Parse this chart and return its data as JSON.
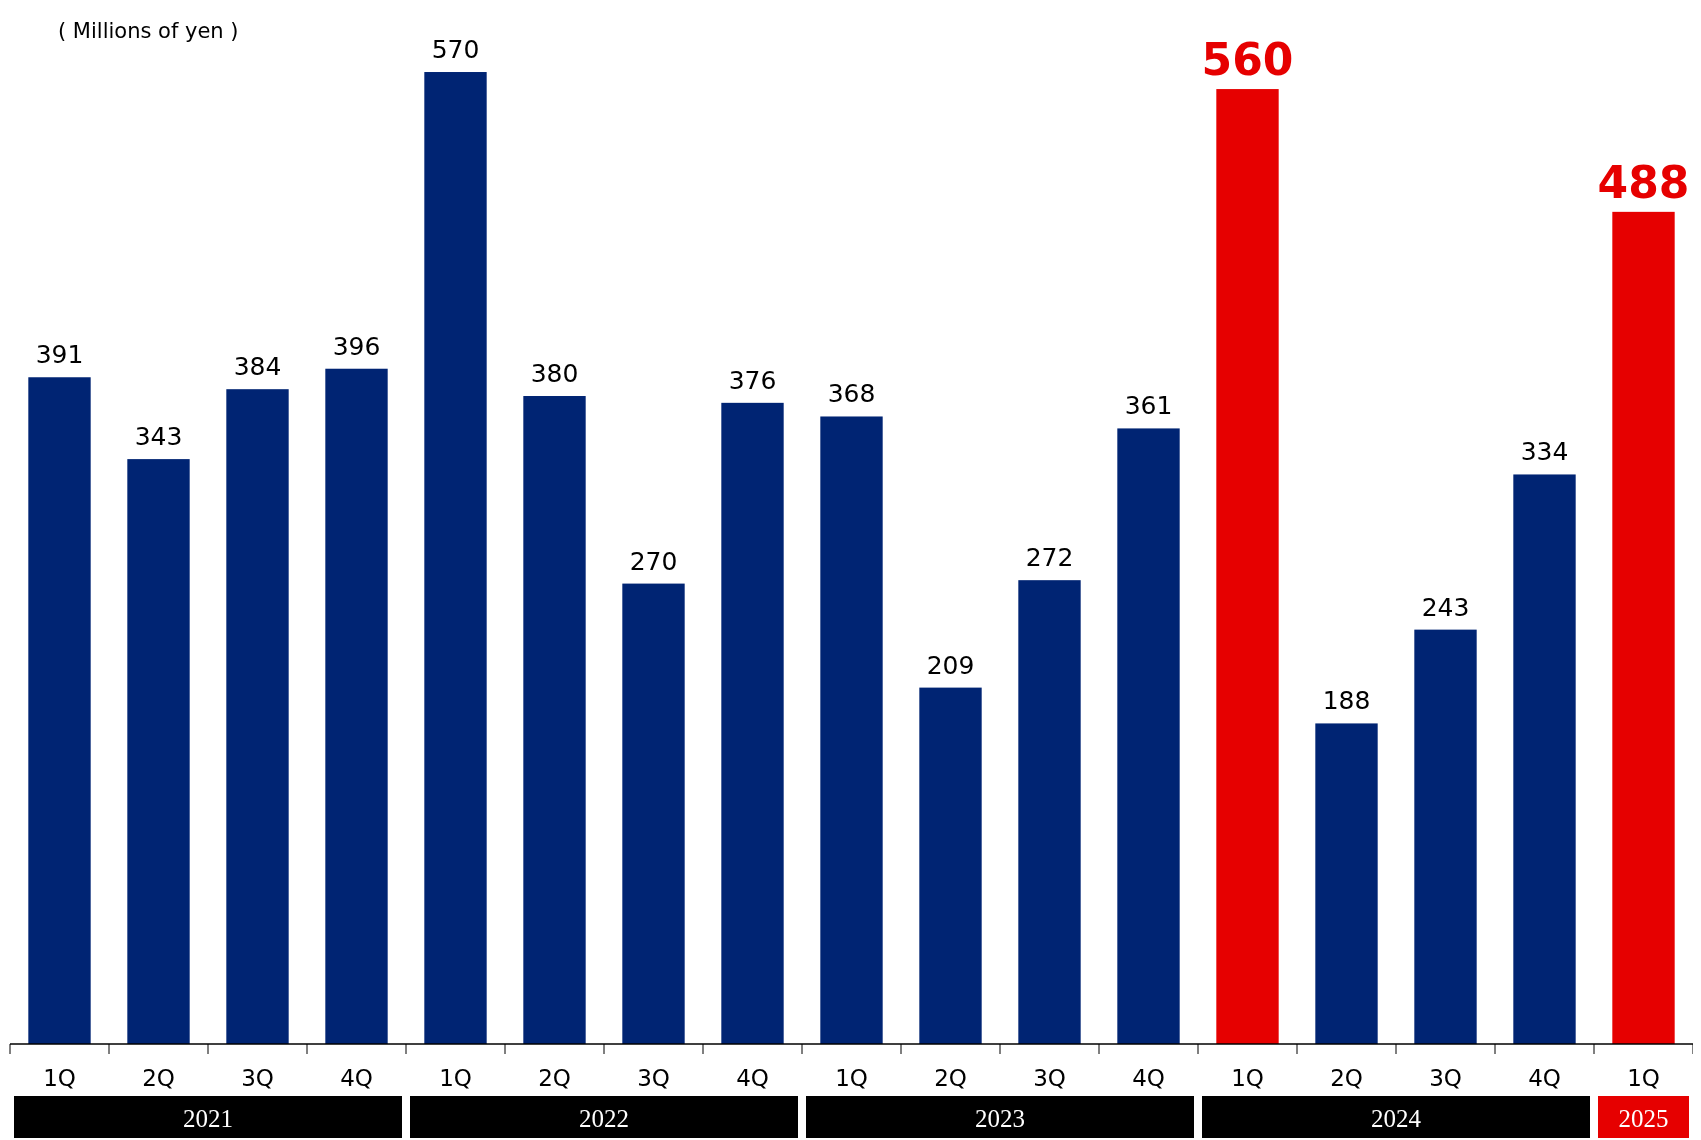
{
  "chart_data": {
    "type": "bar",
    "ylabel": "( Millions of yen )",
    "categories": [
      "1Q",
      "2Q",
      "3Q",
      "4Q",
      "1Q",
      "2Q",
      "3Q",
      "4Q",
      "1Q",
      "2Q",
      "3Q",
      "4Q",
      "1Q",
      "2Q",
      "3Q",
      "4Q",
      "1Q"
    ],
    "values": [
      391,
      343,
      384,
      396,
      570,
      380,
      270,
      376,
      368,
      209,
      272,
      361,
      560,
      188,
      243,
      334,
      488
    ],
    "colors": [
      "#002473",
      "#002473",
      "#002473",
      "#002473",
      "#002473",
      "#002473",
      "#002473",
      "#002473",
      "#002473",
      "#002473",
      "#002473",
      "#002473",
      "#e60000",
      "#002473",
      "#002473",
      "#002473",
      "#e60000"
    ],
    "data_labels": true,
    "tick_labels": "x",
    "annotations": [
      "2021",
      "2022",
      "2023",
      "2024",
      "2025"
    ]
  }
}
